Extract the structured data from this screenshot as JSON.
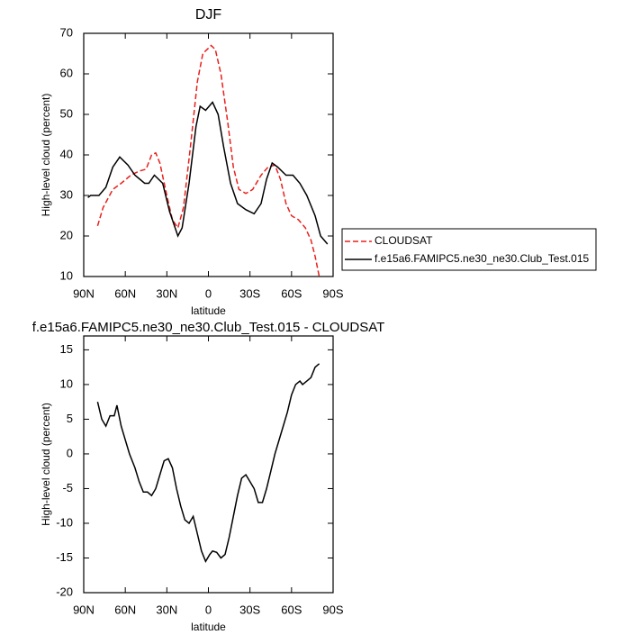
{
  "chart_data": [
    {
      "type": "line",
      "title": "DJF",
      "x_label": "latitude",
      "y_label": "High-level cloud (percent)",
      "xlim": [
        90,
        -90
      ],
      "xticks": [
        {
          "value": 90,
          "label": "90N"
        },
        {
          "value": 60,
          "label": "60N"
        },
        {
          "value": 30,
          "label": "30N"
        },
        0,
        {
          "value": -30,
          "label": "30S"
        },
        {
          "value": -60,
          "label": "60S"
        },
        {
          "value": -90,
          "label": "90S"
        }
      ],
      "ylim": [
        10,
        70
      ],
      "yticks": [
        10,
        20,
        30,
        40,
        50,
        60,
        70
      ],
      "legend": "outside-right",
      "series": [
        {
          "name": "CLOUDSAT",
          "color": "#e8201c",
          "dash": true,
          "x": [
            80,
            76,
            69,
            63,
            56,
            50,
            45,
            41,
            38,
            35,
            30,
            26,
            22,
            18,
            13,
            8,
            4,
            -2,
            -5,
            -9,
            -14,
            -18,
            -22,
            -27,
            -32,
            -38,
            -43,
            -48,
            -52,
            -56,
            -60,
            -65,
            -70,
            -74,
            -77,
            -80
          ],
          "values": [
            22.5,
            27,
            31.5,
            33,
            35,
            36,
            36.5,
            40,
            40.5,
            38,
            30,
            24,
            22,
            27,
            42,
            58,
            65,
            67,
            66,
            60,
            48,
            37,
            31.5,
            30.5,
            31.5,
            35,
            37,
            37.5,
            34,
            28,
            25,
            24,
            22,
            19,
            15,
            10
          ]
        },
        {
          "name": "f.e15a6.FAMIPC5.ne30_ne30.Club_Test.015",
          "color": "#000000",
          "dash": false,
          "x": [
            87,
            85,
            79,
            74,
            69,
            64,
            58,
            53,
            46,
            43,
            39,
            33,
            28,
            22,
            19,
            14,
            9,
            6,
            2,
            -3,
            -7,
            -11,
            -16,
            -21,
            -27,
            -33,
            -38,
            -42,
            -46,
            -50,
            -56,
            -61,
            -66,
            -71,
            -77,
            -81,
            -86
          ],
          "values": [
            29.5,
            30,
            30,
            32,
            37,
            39.5,
            37.5,
            35,
            33,
            33,
            35,
            33,
            26,
            20,
            22,
            33,
            47,
            52,
            51,
            53,
            50,
            42,
            33,
            28,
            26.5,
            25.5,
            28,
            34,
            38,
            37,
            35,
            35,
            33,
            30,
            25,
            20,
            18
          ]
        }
      ]
    },
    {
      "type": "line",
      "title": "f.e15a6.FAMIPC5.ne30_ne30.Club_Test.015 - CLOUDSAT",
      "x_label": "latitude",
      "y_label": "High-level cloud (percent)",
      "xlim": [
        90,
        -90
      ],
      "xticks": [
        {
          "value": 90,
          "label": "90N"
        },
        {
          "value": 60,
          "label": "60N"
        },
        {
          "value": 30,
          "label": "30N"
        },
        0,
        {
          "value": -30,
          "label": "30S"
        },
        {
          "value": -60,
          "label": "60S"
        },
        {
          "value": -90,
          "label": "90S"
        }
      ],
      "ylim": [
        -20,
        17
      ],
      "yticks": [
        -20,
        -15,
        -10,
        -5,
        0,
        5,
        10,
        15
      ],
      "series": [
        {
          "color": "#000000",
          "dash": false,
          "x": [
            80,
            77,
            74,
            71,
            68,
            66,
            63,
            60,
            57,
            53,
            50,
            47,
            44,
            41,
            38,
            35,
            32,
            29,
            26,
            23,
            20,
            17,
            14,
            11,
            8,
            5,
            2,
            -1,
            -3,
            -6,
            -9,
            -12,
            -15,
            -18,
            -21,
            -24,
            -27,
            -30,
            -33,
            -36,
            -39,
            -42,
            -45,
            -48,
            -51,
            -54,
            -57,
            -60,
            -63,
            -66,
            -68,
            -71,
            -74,
            -77,
            -80
          ],
          "values": [
            7.5,
            5,
            4,
            5.5,
            5.5,
            7,
            4,
            2,
            0,
            -2,
            -4,
            -5.5,
            -5.5,
            -6,
            -5,
            -3,
            -1,
            -0.7,
            -2,
            -5,
            -7.5,
            -9.5,
            -10,
            -9,
            -11.5,
            -14,
            -15.5,
            -14.5,
            -14,
            -14.2,
            -15,
            -14.5,
            -12,
            -9,
            -6,
            -3.5,
            -3,
            -4,
            -5,
            -7,
            -7,
            -5,
            -2.5,
            0,
            2,
            4,
            6,
            8.5,
            10,
            10.5,
            10,
            10.5,
            11,
            12.5,
            13
          ]
        }
      ]
    }
  ]
}
